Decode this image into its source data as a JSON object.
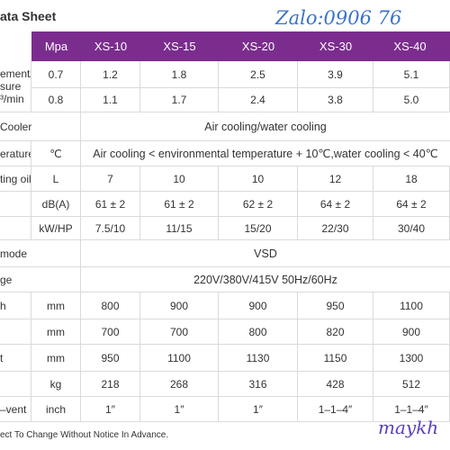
{
  "title": "ata Sheet",
  "watermark_top": "Zalo:0906 76",
  "watermark_bottom": "maykh",
  "header": {
    "unit": "Mpa",
    "models": [
      "XS-10",
      "XS-15",
      "XS-20",
      "XS-30",
      "XS-40"
    ]
  },
  "rows": {
    "displacement": {
      "label_line1": "ement/",
      "label_line2": "sure",
      "label_line3": "³/min",
      "pressures": [
        "0.7",
        "0.8"
      ],
      "values_07": [
        "1.2",
        "1.8",
        "2.5",
        "3.9",
        "5.1"
      ],
      "values_08": [
        "1.1",
        "1.7",
        "2.4",
        "3.8",
        "5.0"
      ]
    },
    "cooler": {
      "label": "Cooler",
      "value": "Air cooling/water cooling"
    },
    "temperature": {
      "label": "erature",
      "unit": "℃",
      "value": "Air cooling < environmental temperature + 10℃,water cooling < 40℃"
    },
    "oil": {
      "label": "ting oil",
      "unit": "L",
      "values": [
        "7",
        "10",
        "10",
        "12",
        "18"
      ]
    },
    "noise": {
      "label": "",
      "unit": "dB(A)",
      "values": [
        "61 ± 2",
        "61 ± 2",
        "62 ± 2",
        "64 ± 2",
        "64 ± 2"
      ]
    },
    "power": {
      "label": "",
      "unit": "kW/HP",
      "values": [
        "7.5/10",
        "11/15",
        "15/20",
        "22/30",
        "30/40"
      ]
    },
    "mode": {
      "label": "mode",
      "value": "VSD"
    },
    "voltage": {
      "label": "ge",
      "value": "220V/380V/415V  50Hz/60Hz"
    },
    "length": {
      "label": "h",
      "unit": "mm",
      "values": [
        "800",
        "900",
        "900",
        "950",
        "1100"
      ]
    },
    "width": {
      "label": "",
      "unit": "mm",
      "values": [
        "700",
        "700",
        "800",
        "820",
        "900"
      ]
    },
    "height": {
      "label": "t",
      "unit": "mm",
      "values": [
        "950",
        "1100",
        "1130",
        "1150",
        "1300"
      ]
    },
    "weight": {
      "label": "",
      "unit": "kg",
      "values": [
        "218",
        "268",
        "316",
        "428",
        "512"
      ]
    },
    "vent": {
      "label": "–vent",
      "unit": "inch",
      "values": [
        "1″",
        "1″",
        "1″",
        "1–1–4″",
        "1–1–4″"
      ]
    }
  },
  "footnote": "ect To Change Without Notice In Advance."
}
